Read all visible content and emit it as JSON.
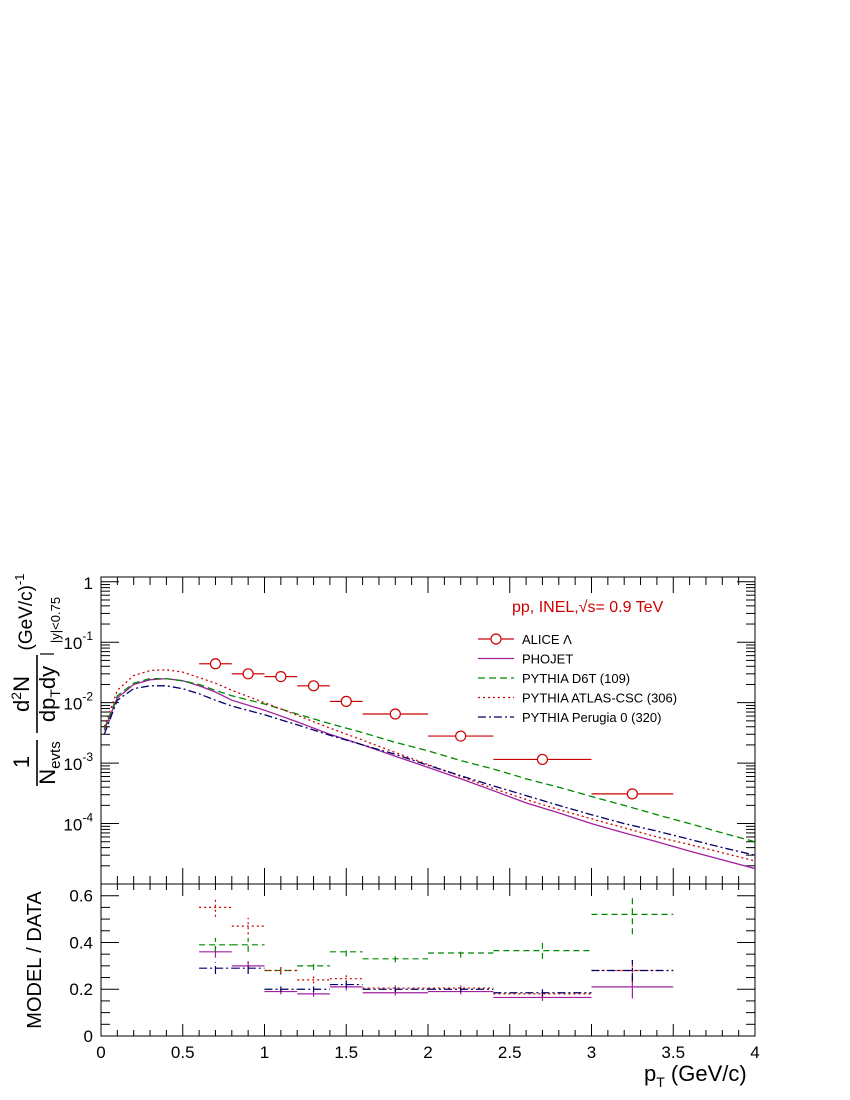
{
  "annotation": "pp, INEL,√s= 0.9 TeV",
  "xlabel": "p",
  "xlabel_sub": "T",
  "xlabel_unit": " (GeV/c)",
  "ylabel_top": {
    "one": "1",
    "nevts_main": "N",
    "nevts_sub": "evts",
    "num_d": "d",
    "num_sup": "2",
    "num_N": "N",
    "den_dp": "dp",
    "den_sub": "T",
    "den_dy": "dy",
    "range": "|y|<0.75",
    "unit": "(GeV/c)",
    "unit_sup": "-1"
  },
  "ylabel_bottom": "MODEL / DATA",
  "chart_data": [
    {
      "type": "line",
      "panel": "spectrum",
      "xlim": [
        0,
        4
      ],
      "ylim": [
        1e-05,
        1.2
      ],
      "yscale": "log",
      "x_ticks": [
        0,
        0.5,
        1,
        1.5,
        2,
        2.5,
        3,
        3.5,
        4
      ],
      "x_tick_labels": [
        "0",
        "0.5",
        "1",
        "1.5",
        "2",
        "2.5",
        "3",
        "3.5",
        "4"
      ],
      "y_ticks": [
        0.0001,
        0.001,
        0.01,
        0.1,
        1
      ],
      "y_tick_labels": [
        {
          "base": "10",
          "exp": "-4"
        },
        {
          "base": "10",
          "exp": "-3"
        },
        {
          "base": "10",
          "exp": "-2"
        },
        {
          "base": "10",
          "exp": "-1"
        },
        {
          "base": "1",
          "exp": ""
        }
      ],
      "legend_position": "top-right",
      "series": [
        {
          "name": "ALICE Λ",
          "kind": "points",
          "color": "#cc0000",
          "points": [
            {
              "x": 0.7,
              "xerr": 0.1,
              "y": 0.044
            },
            {
              "x": 0.9,
              "xerr": 0.1,
              "y": 0.03
            },
            {
              "x": 1.1,
              "xerr": 0.1,
              "y": 0.027
            },
            {
              "x": 1.3,
              "xerr": 0.1,
              "y": 0.019
            },
            {
              "x": 1.5,
              "xerr": 0.1,
              "y": 0.0105
            },
            {
              "x": 1.8,
              "xerr": 0.2,
              "y": 0.0065
            },
            {
              "x": 2.2,
              "xerr": 0.2,
              "y": 0.0028
            },
            {
              "x": 2.7,
              "xerr": 0.3,
              "y": 0.00115
            },
            {
              "x": 3.25,
              "xerr": 0.25,
              "y": 0.00031
            }
          ]
        },
        {
          "name": "PHOJET",
          "kind": "line",
          "color": "#a020a0",
          "dash": "",
          "x": [
            0.02,
            0.1,
            0.2,
            0.3,
            0.4,
            0.5,
            0.6,
            0.7,
            0.8,
            1.0,
            1.2,
            1.4,
            1.6,
            1.8,
            2.0,
            2.2,
            2.4,
            2.6,
            2.8,
            3.0,
            3.2,
            3.4,
            3.6,
            3.8,
            4.0
          ],
          "y": [
            0.0035,
            0.012,
            0.02,
            0.024,
            0.025,
            0.023,
            0.019,
            0.015,
            0.011,
            0.0075,
            0.0048,
            0.003,
            0.002,
            0.0013,
            0.00085,
            0.00055,
            0.00035,
            0.00022,
            0.00015,
            0.0001,
            7e-05,
            5e-05,
            3.5e-05,
            2.5e-05,
            1.8e-05
          ]
        },
        {
          "name": "PYTHIA D6T (109)",
          "kind": "line",
          "color": "#008800",
          "dash": "7,4",
          "x": [
            0.02,
            0.1,
            0.2,
            0.3,
            0.4,
            0.5,
            0.6,
            0.7,
            0.8,
            1.0,
            1.2,
            1.4,
            1.6,
            1.8,
            2.0,
            2.2,
            2.4,
            2.6,
            2.8,
            3.0,
            3.2,
            3.4,
            3.6,
            3.8,
            4.0
          ],
          "y": [
            0.0037,
            0.013,
            0.021,
            0.025,
            0.025,
            0.023,
            0.02,
            0.016,
            0.013,
            0.0095,
            0.0065,
            0.0045,
            0.0032,
            0.0022,
            0.0016,
            0.0011,
            0.0008,
            0.00055,
            0.0004,
            0.00028,
            0.0002,
            0.00014,
            0.0001,
            7e-05,
            5e-05
          ]
        },
        {
          "name": "PYTHIA ATLAS-CSC (306)",
          "kind": "line",
          "color": "#cc0000",
          "dash": "2,3",
          "x": [
            0.02,
            0.1,
            0.2,
            0.3,
            0.4,
            0.5,
            0.6,
            0.7,
            0.8,
            1.0,
            1.2,
            1.4,
            1.6,
            1.8,
            2.0,
            2.2,
            2.4,
            2.6,
            2.8,
            3.0,
            3.2,
            3.4,
            3.6,
            3.8,
            4.0
          ],
          "y": [
            0.004,
            0.016,
            0.028,
            0.034,
            0.035,
            0.032,
            0.026,
            0.021,
            0.016,
            0.01,
            0.0062,
            0.0038,
            0.0024,
            0.0015,
            0.00095,
            0.0006,
            0.00038,
            0.00025,
            0.00017,
            0.00012,
            8.5e-05,
            6e-05,
            4.5e-05,
            3.3e-05,
            2.4e-05
          ]
        },
        {
          "name": "PYTHIA Perugia 0 (320)",
          "kind": "line",
          "color": "#000066",
          "dash": "8,3,2,3",
          "x": [
            0.02,
            0.1,
            0.2,
            0.3,
            0.4,
            0.5,
            0.6,
            0.7,
            0.8,
            1.0,
            1.2,
            1.4,
            1.6,
            1.8,
            2.0,
            2.2,
            2.4,
            2.6,
            2.8,
            3.0,
            3.2,
            3.4,
            3.6,
            3.8,
            4.0
          ],
          "y": [
            0.003,
            0.011,
            0.017,
            0.019,
            0.019,
            0.017,
            0.014,
            0.011,
            0.0088,
            0.0063,
            0.0043,
            0.0029,
            0.002,
            0.0014,
            0.00092,
            0.00062,
            0.00042,
            0.00029,
            0.0002,
            0.00014,
            0.0001,
            7.5e-05,
            5.5e-05,
            4e-05,
            3e-05
          ]
        }
      ]
    },
    {
      "type": "scatter",
      "panel": "ratio",
      "xlim": [
        0,
        4
      ],
      "ylim": [
        0,
        0.65
      ],
      "ylabel": "MODEL / DATA",
      "x_ticks": [
        0,
        0.5,
        1,
        1.5,
        2,
        2.5,
        3,
        3.5,
        4
      ],
      "y_ticks": [
        0,
        0.2,
        0.4,
        0.6
      ],
      "y_tick_labels": [
        "0",
        "0.2",
        "0.4",
        "0.6"
      ],
      "series": [
        {
          "name": "PHOJET",
          "color": "#a020a0",
          "dash": "",
          "points": [
            {
              "x": 0.7,
              "xerr": 0.1,
              "y": 0.36,
              "yerr": 0.025
            },
            {
              "x": 0.9,
              "xerr": 0.1,
              "y": 0.3,
              "yerr": 0.02
            },
            {
              "x": 1.1,
              "xerr": 0.1,
              "y": 0.19,
              "yerr": 0.012
            },
            {
              "x": 1.3,
              "xerr": 0.1,
              "y": 0.18,
              "yerr": 0.012
            },
            {
              "x": 1.5,
              "xerr": 0.1,
              "y": 0.21,
              "yerr": 0.015
            },
            {
              "x": 1.8,
              "xerr": 0.2,
              "y": 0.185,
              "yerr": 0.012
            },
            {
              "x": 2.2,
              "xerr": 0.2,
              "y": 0.19,
              "yerr": 0.012
            },
            {
              "x": 2.7,
              "xerr": 0.3,
              "y": 0.165,
              "yerr": 0.015
            },
            {
              "x": 3.25,
              "xerr": 0.25,
              "y": 0.21,
              "yerr": 0.05
            }
          ]
        },
        {
          "name": "PYTHIA D6T (109)",
          "color": "#008800",
          "dash": "6,4",
          "points": [
            {
              "x": 0.7,
              "xerr": 0.1,
              "y": 0.39,
              "yerr": 0.03
            },
            {
              "x": 0.9,
              "xerr": 0.1,
              "y": 0.39,
              "yerr": 0.03
            },
            {
              "x": 1.1,
              "xerr": 0.1,
              "y": 0.28,
              "yerr": 0.018
            },
            {
              "x": 1.3,
              "xerr": 0.1,
              "y": 0.3,
              "yerr": 0.018
            },
            {
              "x": 1.5,
              "xerr": 0.1,
              "y": 0.36,
              "yerr": 0.02
            },
            {
              "x": 1.8,
              "xerr": 0.2,
              "y": 0.33,
              "yerr": 0.015
            },
            {
              "x": 2.2,
              "xerr": 0.2,
              "y": 0.355,
              "yerr": 0.02
            },
            {
              "x": 2.7,
              "xerr": 0.3,
              "y": 0.365,
              "yerr": 0.035
            },
            {
              "x": 3.25,
              "xerr": 0.25,
              "y": 0.52,
              "yerr": 0.085
            }
          ]
        },
        {
          "name": "PYTHIA ATLAS-CSC (306)",
          "color": "#cc0000",
          "dash": "2,3",
          "points": [
            {
              "x": 0.7,
              "xerr": 0.1,
              "y": 0.55,
              "yerr": 0.04
            },
            {
              "x": 0.9,
              "xerr": 0.1,
              "y": 0.47,
              "yerr": 0.035
            },
            {
              "x": 1.1,
              "xerr": 0.1,
              "y": 0.28,
              "yerr": 0.015
            },
            {
              "x": 1.3,
              "xerr": 0.1,
              "y": 0.24,
              "yerr": 0.015
            },
            {
              "x": 1.5,
              "xerr": 0.1,
              "y": 0.245,
              "yerr": 0.015
            },
            {
              "x": 1.8,
              "xerr": 0.2,
              "y": 0.205,
              "yerr": 0.012
            },
            {
              "x": 2.2,
              "xerr": 0.2,
              "y": 0.205,
              "yerr": 0.012
            },
            {
              "x": 2.7,
              "xerr": 0.3,
              "y": 0.18,
              "yerr": 0.015
            },
            {
              "x": 3.25,
              "xerr": 0.25,
              "y": 0.28,
              "yerr": 0.05
            }
          ]
        },
        {
          "name": "PYTHIA Perugia 0 (320)",
          "color": "#000066",
          "dash": "8,3,2,3",
          "points": [
            {
              "x": 0.7,
              "xerr": 0.1,
              "y": 0.29,
              "yerr": 0.025
            },
            {
              "x": 0.9,
              "xerr": 0.1,
              "y": 0.29,
              "yerr": 0.025
            },
            {
              "x": 1.1,
              "xerr": 0.1,
              "y": 0.2,
              "yerr": 0.012
            },
            {
              "x": 1.3,
              "xerr": 0.1,
              "y": 0.2,
              "yerr": 0.012
            },
            {
              "x": 1.5,
              "xerr": 0.1,
              "y": 0.22,
              "yerr": 0.015
            },
            {
              "x": 1.8,
              "xerr": 0.2,
              "y": 0.2,
              "yerr": 0.012
            },
            {
              "x": 2.2,
              "xerr": 0.2,
              "y": 0.2,
              "yerr": 0.012
            },
            {
              "x": 2.7,
              "xerr": 0.3,
              "y": 0.185,
              "yerr": 0.015
            },
            {
              "x": 3.25,
              "xerr": 0.25,
              "y": 0.28,
              "yerr": 0.045
            }
          ]
        }
      ]
    }
  ]
}
